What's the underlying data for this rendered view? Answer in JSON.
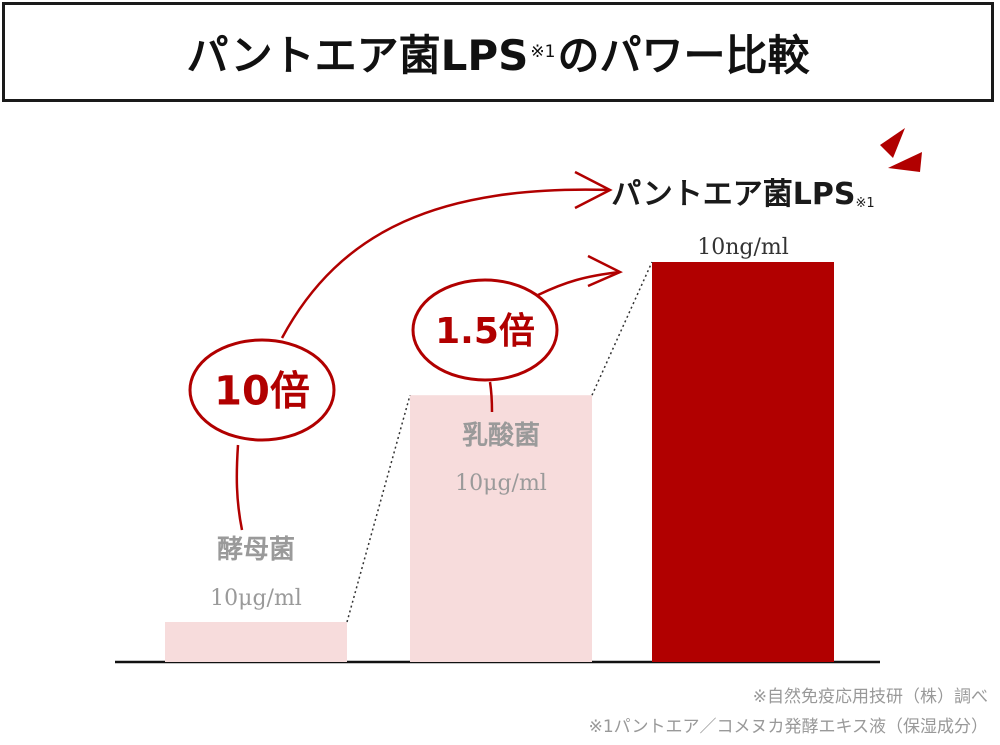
{
  "title": {
    "main": "パントエア菌LPS",
    "sup": "※1",
    "rest": "のパワー比較"
  },
  "chart_data": {
    "type": "bar",
    "categories": [
      "酵母菌",
      "乳酸菌",
      "パントエア菌LPS"
    ],
    "category_sup": [
      "",
      "",
      "※1"
    ],
    "value_labels": [
      "10μg/ml",
      "10μg/ml",
      "10ng/ml"
    ],
    "values": [
      10000,
      10000,
      10
    ],
    "units": [
      "ng/ml",
      "ng/ml",
      "ng/ml"
    ],
    "relative_power": [
      1,
      6.67,
      10
    ],
    "bar_colors": [
      "#f7dcdc",
      "#f7dcdc",
      "#b10000"
    ],
    "label_colors": [
      "#9a9a9a",
      "#9a9a9a",
      "#1a1a1a"
    ],
    "accent_color": "#b10000",
    "annotations": [
      {
        "label": "10倍",
        "from": "酵母菌",
        "to": "パントエア菌LPS"
      },
      {
        "label": "1.5倍",
        "from": "乳酸菌",
        "to": "パントエア菌LPS"
      }
    ]
  },
  "notes": {
    "line1": "※自然免疫応用技研（株）調べ",
    "line2": "※1パントエア／コメヌカ発酵エキス液（保湿成分）"
  }
}
